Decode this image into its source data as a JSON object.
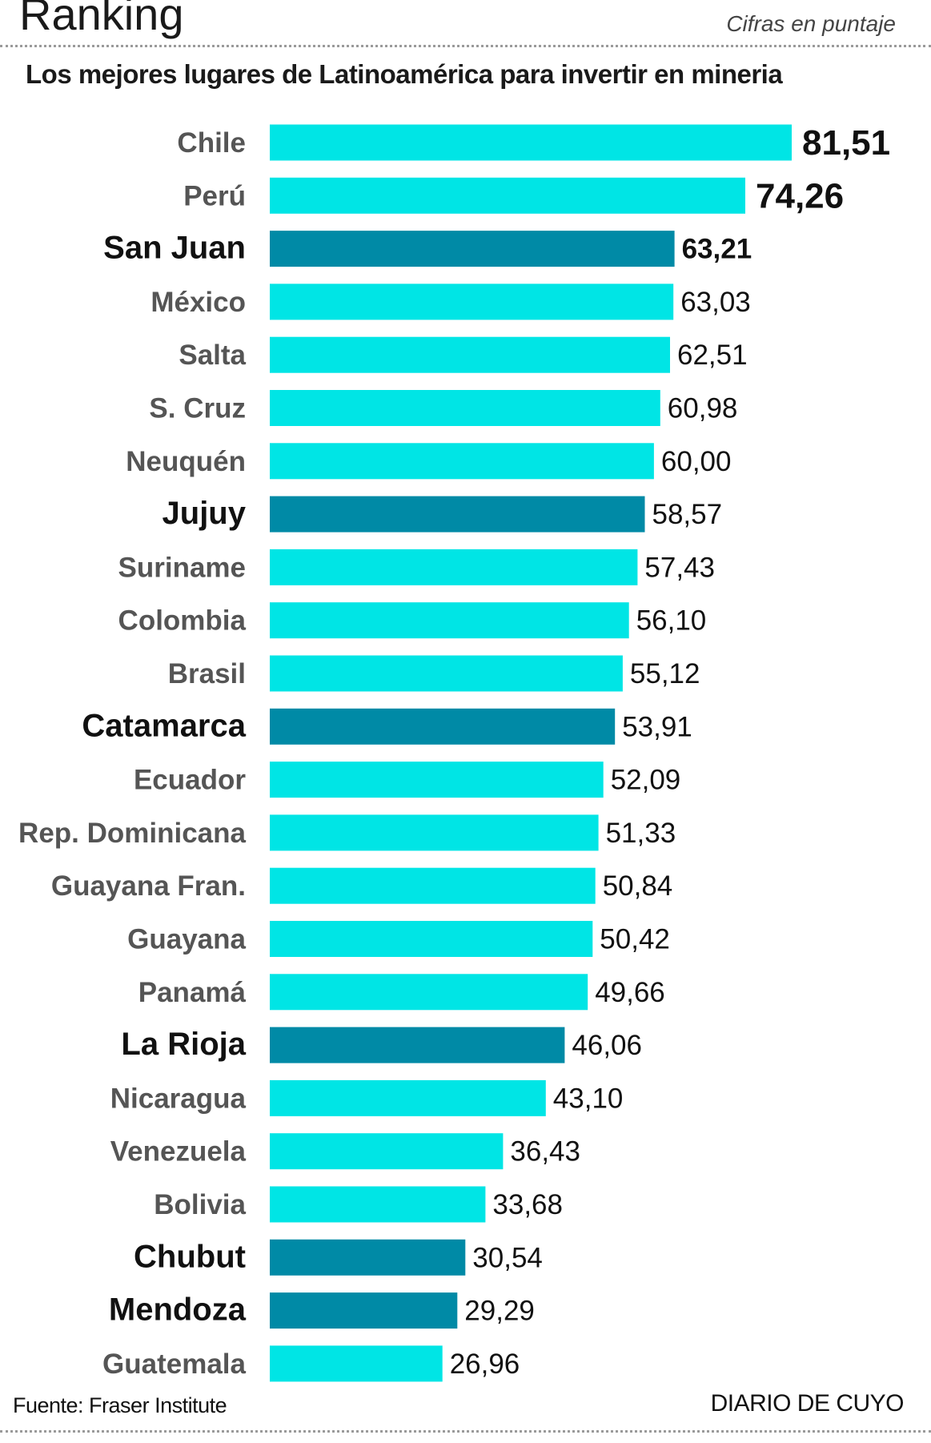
{
  "header": {
    "title": "Ranking",
    "units": "Cifras en puntaje",
    "subtitle": "Los mejores lugares de Latinoamérica para invertir en mineria"
  },
  "footer": {
    "source": "Fuente: Fraser Institute",
    "brand": "DIARIO DE CUYO"
  },
  "colors": {
    "bar_default": "#00e5e5",
    "bar_highlight": "#008aa6",
    "label_default": "#555555",
    "label_highlight": "#111111",
    "value_text": "#111111"
  },
  "chart_data": {
    "type": "bar",
    "orientation": "horizontal",
    "title": "Los mejores lugares de Latinoamérica para invertir en mineria",
    "xlabel": "",
    "ylabel": "",
    "xlim": [
      0,
      81.51
    ],
    "grid": false,
    "categories": [
      "Chile",
      "Perú",
      "San Juan",
      "México",
      "Salta",
      "S. Cruz",
      "Neuquén",
      "Jujuy",
      "Suriname",
      "Colombia",
      "Brasil",
      "Catamarca",
      "Ecuador",
      "Rep. Dominicana",
      "Guayana Fran.",
      "Guayana",
      "Panamá",
      "La Rioja",
      "Nicaragua",
      "Venezuela",
      "Bolivia",
      "Chubut",
      "Mendoza",
      "Guatemala"
    ],
    "values": [
      81.51,
      74.26,
      63.21,
      63.03,
      62.51,
      60.98,
      60.0,
      58.57,
      57.43,
      56.1,
      55.12,
      53.91,
      52.09,
      51.33,
      50.84,
      50.42,
      49.66,
      46.06,
      43.1,
      36.43,
      33.68,
      30.54,
      29.29,
      26.96
    ],
    "value_labels": [
      "81,51",
      "74,26",
      "63,21",
      "63,03",
      "62,51",
      "60,98",
      "60,00",
      "58,57",
      "57,43",
      "56,10",
      "55,12",
      "53,91",
      "52,09",
      "51,33",
      "50,84",
      "50,42",
      "49,66",
      "46,06",
      "43,10",
      "36,43",
      "33,68",
      "30,54",
      "29,29",
      "26,96"
    ],
    "highlighted": [
      "San Juan",
      "Jujuy",
      "Catamarca",
      "La Rioja",
      "Chubut",
      "Mendoza"
    ]
  }
}
